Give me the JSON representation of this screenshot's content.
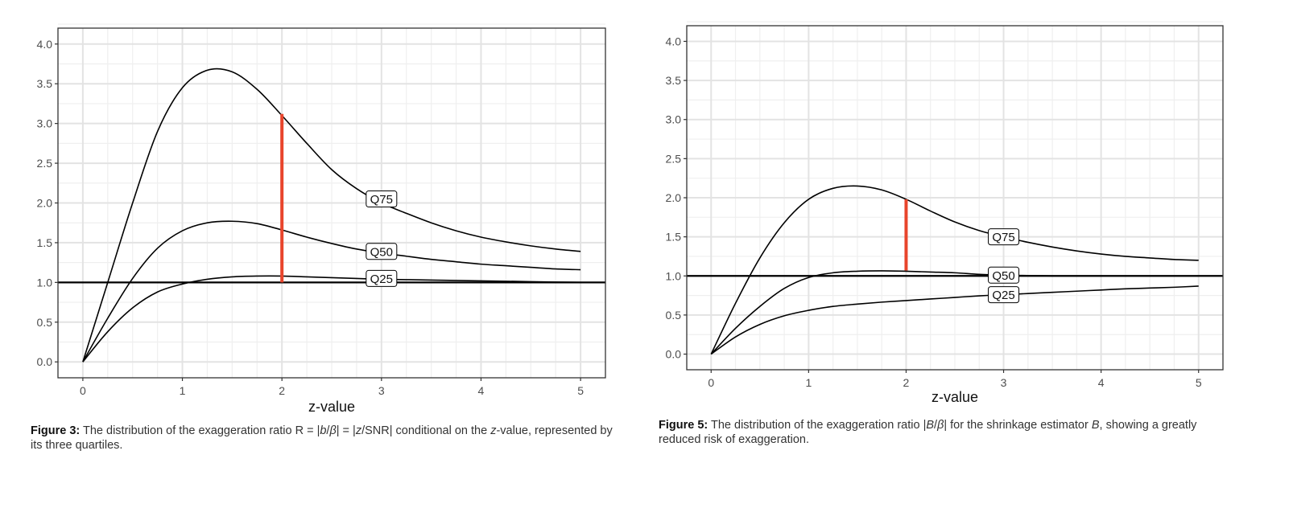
{
  "chart_data": [
    {
      "type": "line",
      "xlabel": "z-value",
      "ylabel": "",
      "xlim": [
        -0.25,
        5.25
      ],
      "ylim": [
        -0.2,
        4.2
      ],
      "x_ticks": [
        "0",
        "1",
        "2",
        "3",
        "4",
        "5"
      ],
      "x_tick_values": [
        0,
        1,
        2,
        3,
        4,
        5
      ],
      "y_ticks": [
        "0.0",
        "0.5",
        "1.0",
        "1.5",
        "2.0",
        "2.5",
        "3.0",
        "3.5",
        "4.0"
      ],
      "y_tick_values": [
        0,
        0.5,
        1,
        1.5,
        2,
        2.5,
        3,
        3.5,
        4
      ],
      "grid": true,
      "hline": 1.0,
      "vline": {
        "x": 2,
        "y": [
          1.0,
          3.12
        ],
        "color": "#e8452c"
      },
      "x": [
        0,
        0.25,
        0.5,
        0.75,
        1,
        1.25,
        1.5,
        1.75,
        2,
        2.25,
        2.5,
        2.75,
        3,
        3.25,
        3.5,
        3.75,
        4,
        4.25,
        4.5,
        4.75,
        5
      ],
      "series": [
        {
          "label": "Q75",
          "label_at": [
            3.0,
            2.05
          ],
          "values": [
            0,
            1.0,
            2.0,
            2.9,
            3.45,
            3.67,
            3.65,
            3.43,
            3.1,
            2.75,
            2.42,
            2.18,
            2.0,
            1.87,
            1.75,
            1.65,
            1.57,
            1.51,
            1.46,
            1.42,
            1.39
          ]
        },
        {
          "label": "Q50",
          "label_at": [
            3.0,
            1.39
          ],
          "values": [
            0,
            0.55,
            1.05,
            1.43,
            1.65,
            1.75,
            1.77,
            1.74,
            1.66,
            1.57,
            1.49,
            1.42,
            1.37,
            1.33,
            1.29,
            1.26,
            1.23,
            1.21,
            1.19,
            1.17,
            1.16
          ]
        },
        {
          "label": "Q25",
          "label_at": [
            3.0,
            1.05
          ],
          "values": [
            0,
            0.38,
            0.68,
            0.88,
            0.98,
            1.04,
            1.07,
            1.08,
            1.08,
            1.07,
            1.06,
            1.05,
            1.04,
            1.035,
            1.03,
            1.025,
            1.02,
            1.015,
            1.01,
            1.005,
            1.0
          ]
        }
      ],
      "caption_label": "Figure 3:",
      "caption_parts": [
        " The distribution of the exaggeration ratio R = |",
        "b",
        "/",
        "β",
        "| = |",
        "z",
        "/SNR| conditional on the ",
        "z",
        "-value, represented by its three quartiles."
      ]
    },
    {
      "type": "line",
      "xlabel": "z-value",
      "ylabel": "",
      "xlim": [
        -0.25,
        5.25
      ],
      "ylim": [
        -0.2,
        4.2
      ],
      "x_ticks": [
        "0",
        "1",
        "2",
        "3",
        "4",
        "5"
      ],
      "x_tick_values": [
        0,
        1,
        2,
        3,
        4,
        5
      ],
      "y_ticks": [
        "0.0",
        "0.5",
        "1.0",
        "1.5",
        "2.0",
        "2.5",
        "3.0",
        "3.5",
        "4.0"
      ],
      "y_tick_values": [
        0,
        0.5,
        1,
        1.5,
        2,
        2.5,
        3,
        3.5,
        4
      ],
      "grid": true,
      "hline": 1.0,
      "vline": {
        "x": 2,
        "y": [
          1.07,
          1.98
        ],
        "color": "#e8452c"
      },
      "x": [
        0,
        0.25,
        0.5,
        0.75,
        1,
        1.25,
        1.5,
        1.75,
        2,
        2.25,
        2.5,
        2.75,
        3,
        3.25,
        3.5,
        3.75,
        4,
        4.25,
        4.5,
        4.75,
        5
      ],
      "series": [
        {
          "label": "Q75",
          "label_at": [
            3.0,
            1.5
          ],
          "values": [
            0,
            0.65,
            1.23,
            1.68,
            1.98,
            2.12,
            2.15,
            2.1,
            1.98,
            1.83,
            1.69,
            1.58,
            1.5,
            1.43,
            1.37,
            1.32,
            1.28,
            1.25,
            1.23,
            1.21,
            1.2
          ]
        },
        {
          "label": "Q50",
          "label_at": [
            3.0,
            1.01
          ],
          "values": [
            0,
            0.33,
            0.61,
            0.84,
            0.98,
            1.04,
            1.06,
            1.065,
            1.06,
            1.05,
            1.04,
            1.02,
            1.01,
            1.005,
            1.0,
            1.0,
            1.0,
            1.0,
            1.0,
            1.0,
            1.0
          ]
        },
        {
          "label": "Q25",
          "label_at": [
            3.0,
            0.76
          ],
          "values": [
            0,
            0.22,
            0.38,
            0.49,
            0.56,
            0.61,
            0.64,
            0.665,
            0.685,
            0.705,
            0.725,
            0.745,
            0.76,
            0.775,
            0.79,
            0.805,
            0.82,
            0.835,
            0.845,
            0.855,
            0.87
          ]
        }
      ],
      "caption_label": "Figure 5:",
      "caption_parts": [
        " The distribution of the exaggeration ratio |",
        "B",
        "/",
        "β",
        "| for the shrinkage estimator ",
        "B",
        ", showing a greatly reduced risk of exaggeration."
      ]
    }
  ]
}
